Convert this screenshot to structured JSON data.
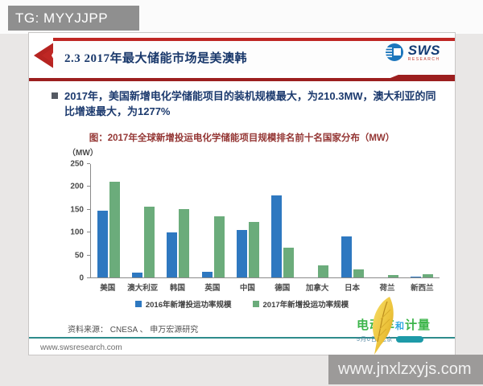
{
  "watermarks": {
    "top": "TG: MYYJJPP",
    "bottom": "www.jnxlzxyjs.com"
  },
  "header": {
    "title": "2.3 2017年最大储能市场是美澳韩",
    "logo": {
      "name": "SWS",
      "subtext": "RESEARCH"
    }
  },
  "body": {
    "bullet": "2017年，美国新增电化学储能项目的装机规模最大，为210.3MW，澳大利亚的同比增速最大，为1277%"
  },
  "chart_data": {
    "type": "bar",
    "title": "图：2017年全球新增投运电化学储能项目规模排名前十名国家分布（MW）",
    "unit_label": "（MW）",
    "categories": [
      "美国",
      "澳大利亚",
      "韩国",
      "英国",
      "中国",
      "德国",
      "加拿大",
      "日本",
      "荷兰",
      "新西兰"
    ],
    "series": [
      {
        "name": "2016年新增投运功率规模",
        "color": "#2e78c0",
        "values": [
          147,
          11,
          98,
          12,
          104,
          180,
          0,
          90,
          0,
          2
        ]
      },
      {
        "name": "2017年新增投运功率规模",
        "color": "#6bac7b",
        "values": [
          210.3,
          155,
          150,
          134,
          121,
          65,
          27,
          18,
          5,
          7
        ]
      }
    ],
    "ylim": [
      0,
      250
    ],
    "yticks": [
      0,
      50,
      100,
      150,
      200,
      250
    ],
    "grid": false,
    "legend_position": "bottom"
  },
  "footer": {
    "source": "资料来源：  CNESA 、 申万宏源研究",
    "website": "www.swsresearch.com",
    "brand": {
      "part1": "电动车",
      "part2": "和",
      "part3": "计量",
      "tagline": "5月0日·北京"
    }
  },
  "colors": {
    "accent_red": "#bf2724",
    "underline_red": "#9c1f1f",
    "title_blue": "#19386b",
    "chart_title_red": "#943634",
    "teal": "#2e8c8c",
    "brand_green": "#3cb54a"
  }
}
